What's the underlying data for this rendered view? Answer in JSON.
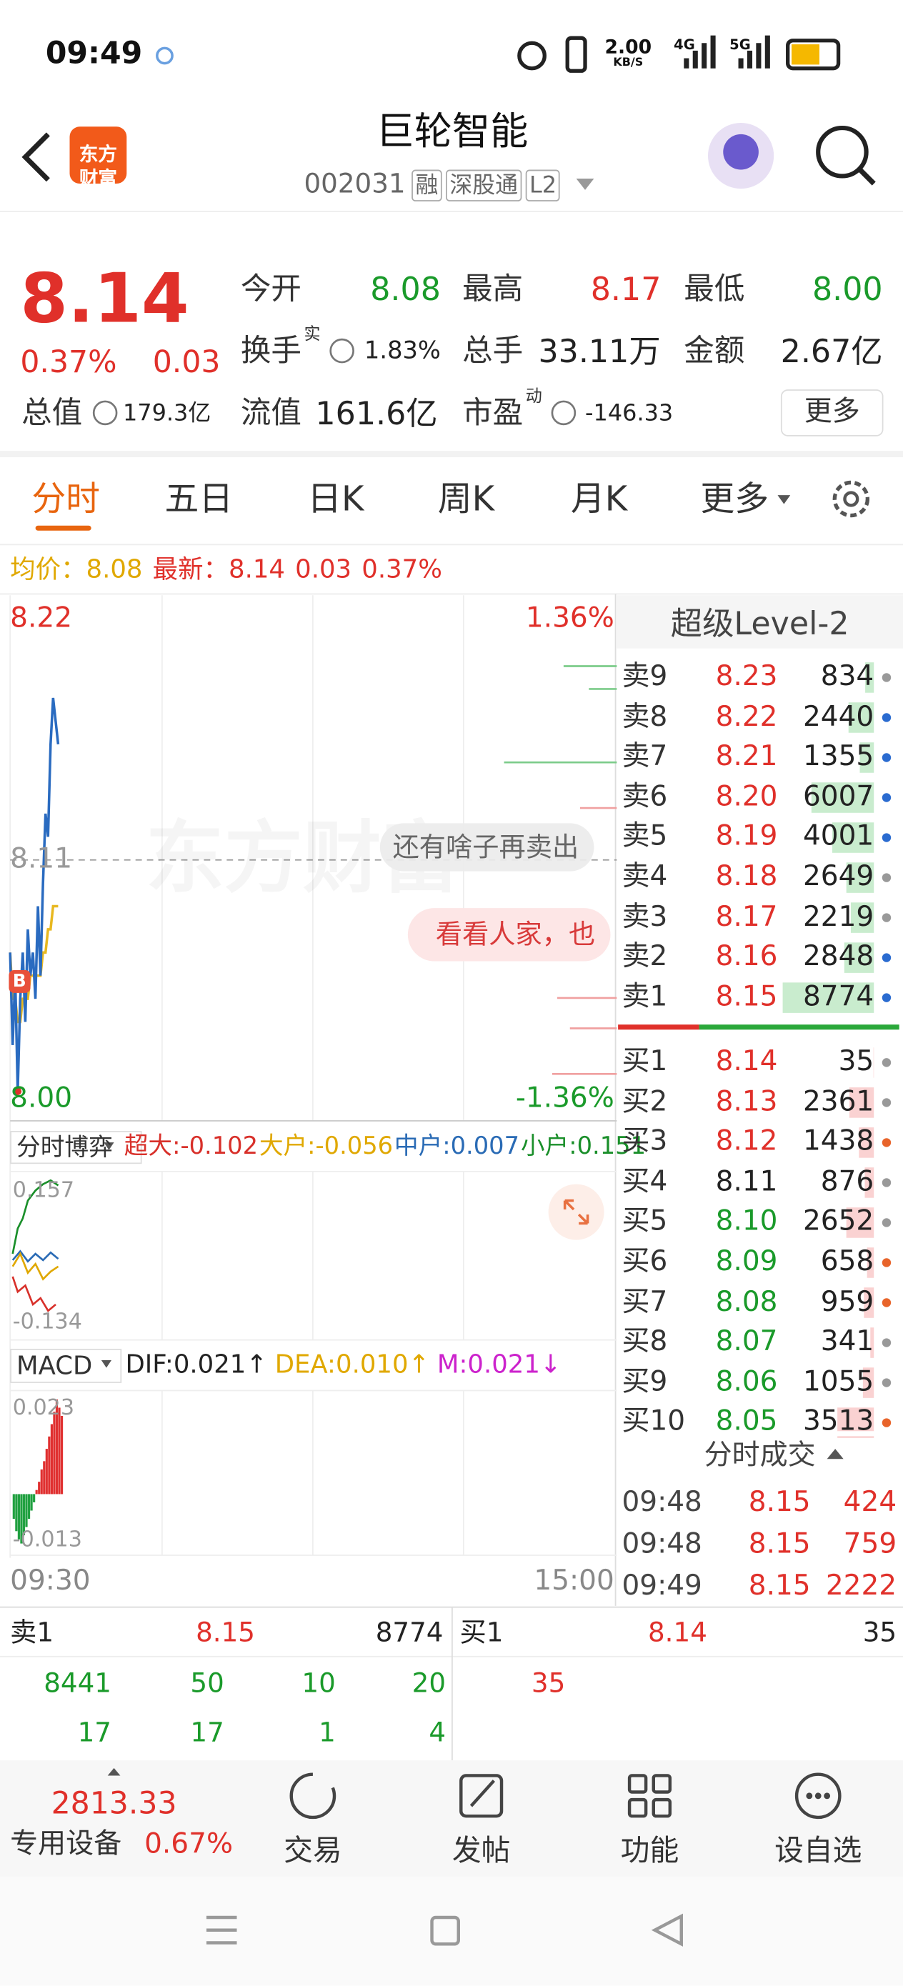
{
  "status_bar": {
    "time": "09:49",
    "speed": "2.00",
    "speed_unit": "KB/S",
    "net1": "4G",
    "net2": "5G"
  },
  "header": {
    "logo": "东方财富",
    "title": "巨轮智能",
    "code": "002031",
    "tags": [
      "融",
      "深股通",
      "L2"
    ]
  },
  "quote": {
    "price": "8.14",
    "change_pct": "0.37%",
    "change": "0.03",
    "more": "更多",
    "fields": [
      {
        "label": "今开",
        "value": "8.08",
        "color": "#1a9a2a"
      },
      {
        "label": "最高",
        "value": "8.17",
        "color": "#e0302a"
      },
      {
        "label": "最低",
        "value": "8.00",
        "color": "#1a9a2a"
      },
      {
        "label": "换手",
        "sup": "实",
        "value": "1.83%",
        "color": "#222222"
      },
      {
        "label": "总手",
        "value": "33.11万",
        "color": "#222222"
      },
      {
        "label": "金额",
        "value": "2.67亿",
        "color": "#222222"
      },
      {
        "label": "总值",
        "value": "179.3亿",
        "color": "#222222"
      },
      {
        "label": "流值",
        "value": "161.6亿",
        "color": "#222222"
      },
      {
        "label": "市盈",
        "sup": "动",
        "value": "-146.33",
        "color": "#222222"
      }
    ]
  },
  "tabs": [
    "分时",
    "五日",
    "日K",
    "周K",
    "月K",
    "更多"
  ],
  "info": {
    "avg_label": "均价：",
    "avg": "8.08",
    "last_label": "最新：",
    "last": "8.14",
    "change": "0.03",
    "pct": "0.37%"
  },
  "intraday": {
    "top": "8.22",
    "mid": "8.11",
    "bottom": "8.00",
    "top_pct": "1.36%",
    "bottom_pct": "-1.36%",
    "start": "09:30",
    "end": "15:00",
    "xlim": [
      0,
      240
    ],
    "ylim": [
      8.0,
      8.22
    ],
    "x": [
      0,
      1,
      2,
      3,
      4,
      5,
      6,
      7,
      8,
      9,
      10,
      11,
      12,
      13,
      14,
      15,
      16,
      17,
      18,
      19
    ],
    "price": [
      8.07,
      8.03,
      8.06,
      8.01,
      8.05,
      8.07,
      8.04,
      8.08,
      8.06,
      8.07,
      8.05,
      8.09,
      8.06,
      8.1,
      8.13,
      8.12,
      8.16,
      8.18,
      8.17,
      8.16
    ],
    "avg": [
      8.07,
      8.05,
      8.05,
      8.04,
      8.04,
      8.05,
      8.05,
      8.05,
      8.06,
      8.06,
      8.06,
      8.06,
      8.06,
      8.07,
      8.07,
      8.08,
      8.08,
      8.09,
      8.09,
      8.09
    ],
    "marker": "B",
    "watermark": "东方财富",
    "bubbles": [
      "还有啥子再卖出",
      "看看人家，也"
    ]
  },
  "fund_flow": {
    "label": "分时博弈",
    "top": "0.157",
    "bottom": "-0.134",
    "items": [
      {
        "label": "超大:",
        "value": "-0.102",
        "color": "#d8302a"
      },
      {
        "label": "大户:",
        "value": "-0.056",
        "color": "#e0a800"
      },
      {
        "label": "中户:",
        "value": "0.007",
        "color": "#2a6bb5"
      },
      {
        "label": "小户:",
        "value": "0.151",
        "color": "#1a8f2a"
      }
    ]
  },
  "macd": {
    "label": "MACD",
    "top": "0.023",
    "bottom": "-0.013",
    "ylim": [
      -0.013,
      0.023
    ],
    "items": [
      {
        "text": "DIF:0.021↑",
        "color": "#222222"
      },
      {
        "text": "DEA:0.010↑",
        "color": "#e0a800"
      },
      {
        "text": "M:0.021↓",
        "color": "#cc22cc"
      }
    ],
    "values": [
      -0.006,
      -0.009,
      -0.011,
      -0.012,
      -0.01,
      -0.008,
      -0.006,
      -0.004,
      -0.002,
      0.001,
      0.003,
      0.006,
      0.008,
      0.011,
      0.014,
      0.017,
      0.02,
      0.023,
      0.021,
      0.019
    ]
  },
  "order_book": {
    "title": "超级Level-2",
    "prev_close": "8.11",
    "sells": [
      {
        "label": "卖9",
        "price": "8.23",
        "volume": 834,
        "dot": "#999999"
      },
      {
        "label": "卖8",
        "price": "8.22",
        "volume": 2440,
        "dot": "#2a6bd0"
      },
      {
        "label": "卖7",
        "price": "8.21",
        "volume": 1355,
        "dot": "#2a6bd0"
      },
      {
        "label": "卖6",
        "price": "8.20",
        "volume": 6007,
        "dot": "#2a6bd0"
      },
      {
        "label": "卖5",
        "price": "8.19",
        "volume": 4001,
        "dot": "#2a6bd0"
      },
      {
        "label": "卖4",
        "price": "8.18",
        "volume": 2649,
        "dot": "#999999"
      },
      {
        "label": "卖3",
        "price": "8.17",
        "volume": 2219,
        "dot": "#999999"
      },
      {
        "label": "卖2",
        "price": "8.16",
        "volume": 2848,
        "dot": "#2a6bd0"
      },
      {
        "label": "卖1",
        "price": "8.15",
        "volume": 8774,
        "dot": "#2a6bd0"
      }
    ],
    "buys": [
      {
        "label": "买1",
        "price": "8.14",
        "volume": 35,
        "dot": "#999999"
      },
      {
        "label": "买2",
        "price": "8.13",
        "volume": 2361,
        "dot": "#999999"
      },
      {
        "label": "买3",
        "price": "8.12",
        "volume": 1438,
        "dot": "#e8642a"
      },
      {
        "label": "买4",
        "price": "8.11",
        "volume": 876,
        "dot": "#999999"
      },
      {
        "label": "买5",
        "price": "8.10",
        "volume": 2652,
        "dot": "#999999"
      },
      {
        "label": "买6",
        "price": "8.09",
        "volume": 658,
        "dot": "#e8642a"
      },
      {
        "label": "买7",
        "price": "8.08",
        "volume": 959,
        "dot": "#e8642a"
      },
      {
        "label": "买8",
        "price": "8.07",
        "volume": 341,
        "dot": "#999999"
      },
      {
        "label": "买9",
        "price": "8.06",
        "volume": 1055,
        "dot": "#999999"
      },
      {
        "label": "买10",
        "price": "8.05",
        "volume": 3513,
        "dot": "#e8642a"
      }
    ]
  },
  "trades": {
    "title": "分时成交",
    "rows": [
      {
        "time": "09:48",
        "price": "8.15",
        "volume": "424"
      },
      {
        "time": "09:48",
        "price": "8.15",
        "volume": "759"
      },
      {
        "time": "09:49",
        "price": "8.15",
        "volume": "2222"
      }
    ]
  },
  "queue": {
    "sell": {
      "label": "卖1",
      "price": "8.15",
      "volume": "8774",
      "orders": [
        "8441",
        "50",
        "10",
        "20",
        "17",
        "17",
        "1",
        "4"
      ]
    },
    "buy": {
      "label": "买1",
      "price": "8.14",
      "volume": "35",
      "orders": [
        "35"
      ]
    }
  },
  "bottom_bar": {
    "index": "2813.33",
    "sector": "专用设备",
    "sector_pct": "0.67%",
    "nav": [
      "交易",
      "发帖",
      "功能",
      "设自选"
    ]
  }
}
